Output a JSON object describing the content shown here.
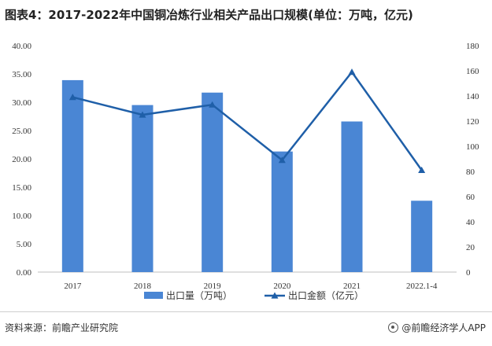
{
  "title": "图表4：2017-2022年中国铜冶炼行业相关产品出口规模(单位：万吨，亿元)",
  "source": "资料来源：前瞻产业研究院",
  "brand": "@前瞻经济学人APP",
  "colors": {
    "bar": "#4a86d4",
    "line": "#1f5fa8",
    "axis": "#bfbfbf"
  },
  "chart_data": {
    "type": "bar",
    "categories": [
      "2017",
      "2018",
      "2019",
      "2020",
      "2021",
      "2022.1-4"
    ],
    "left_axis": {
      "min": 0,
      "max": 40,
      "ticks": [
        "0.00",
        "5.00",
        "10.00",
        "15.00",
        "20.00",
        "25.00",
        "30.00",
        "35.00",
        "40.00"
      ]
    },
    "right_axis": {
      "min": 0,
      "max": 180,
      "ticks": [
        "0",
        "20",
        "40",
        "60",
        "80",
        "100",
        "120",
        "140",
        "160",
        "180"
      ]
    },
    "series": [
      {
        "name": "出口量（万吨）",
        "type": "bar",
        "axis": "left",
        "values": [
          33.9,
          29.5,
          31.7,
          21.3,
          26.6,
          12.6
        ]
      },
      {
        "name": "出口金额（亿元）",
        "type": "line",
        "axis": "right",
        "values": [
          139,
          125,
          133,
          89,
          159,
          81
        ]
      }
    ],
    "grid": false,
    "legend": "bottom"
  }
}
